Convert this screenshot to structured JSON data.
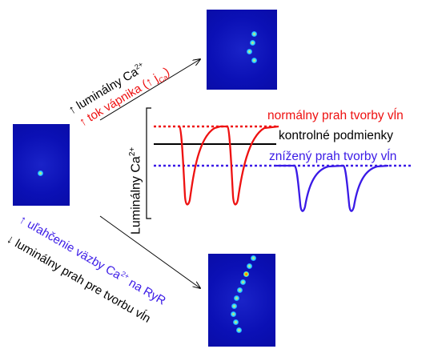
{
  "upper_branch": {
    "line1_prefix": "↑ luminálny Ca",
    "line1_sup": "2+",
    "line2_prefix": "↑ tok vápnika (↑ j",
    "line2_sub": "Ca",
    "line2_suffix": ")"
  },
  "lower_branch": {
    "line1_prefix": "↑ uľahčenie väzby Ca",
    "line1_sup": "2+",
    "line1_suffix": " na RyR",
    "line2": "↓ luminálny prah pre tvorbu vĺn"
  },
  "graph": {
    "ylabel_prefix": "Luminálny Ca",
    "ylabel_sup": "2+",
    "label_normal": "normálny prah tvorby vĺn",
    "label_control": "kontrolné podmienky",
    "label_reduced": "znížený prah tvorby vĺn"
  },
  "colors": {
    "red": "#ee1111",
    "blue": "#3a1ae6",
    "black": "#000000",
    "panel_bg": "#0a0fb4"
  }
}
